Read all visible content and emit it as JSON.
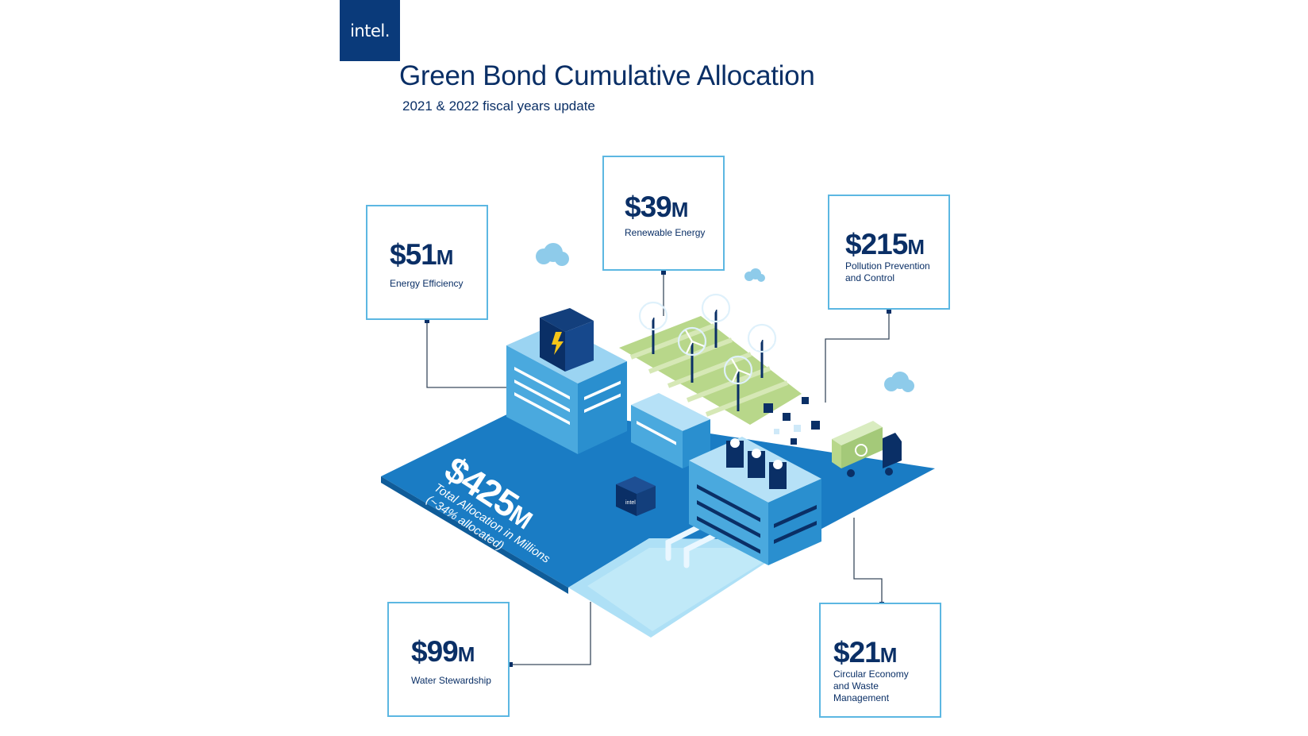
{
  "brand": {
    "logo_text": "intel."
  },
  "header": {
    "title": "Green Bond Cumulative Allocation",
    "subtitle": "2021 & 2022 fiscal years update"
  },
  "total": {
    "amount": "$425",
    "unit": "M",
    "line1": "Total Allocation in Millions",
    "line2": "(~34% allocated)"
  },
  "categories": [
    {
      "amount": "$51",
      "unit": "M",
      "label": "Energy Efficiency"
    },
    {
      "amount": "$39",
      "unit": "M",
      "label": "Renewable Energy"
    },
    {
      "amount": "$215",
      "unit": "M",
      "label": "Pollution Prevention and Control"
    },
    {
      "amount": "$99",
      "unit": "M",
      "label": "Water Stewardship"
    },
    {
      "amount": "$21",
      "unit": "M",
      "label": "Circular Economy and Waste Management"
    }
  ],
  "illustration": {
    "cube_logo_text": "intel",
    "colors": {
      "navy": "#0a2f66",
      "blue": "#1a7cc4",
      "light_blue": "#5cb7e2",
      "green": "#b8d78a"
    }
  }
}
